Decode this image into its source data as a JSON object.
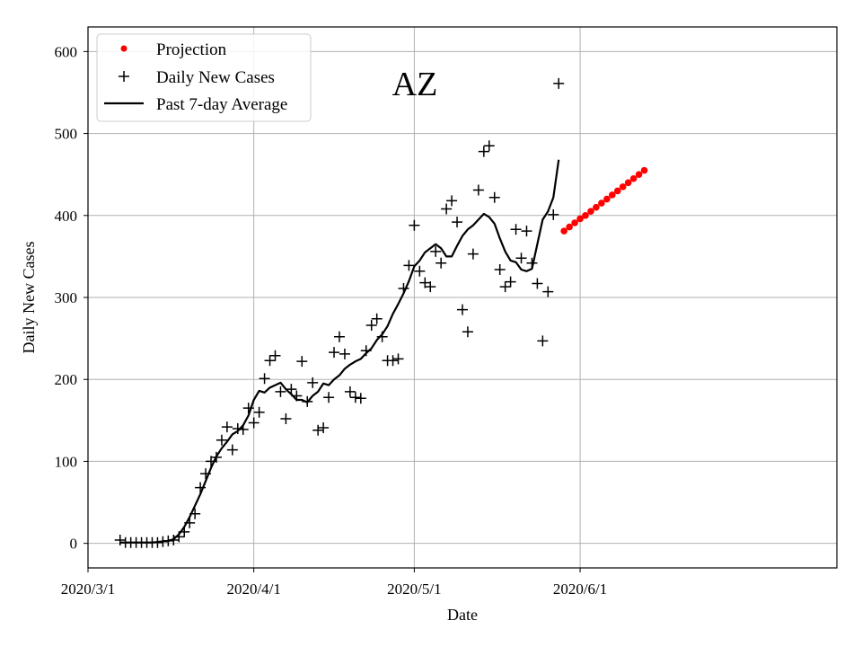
{
  "chart_data": {
    "type": "scatter",
    "title": "AZ",
    "xlabel": "Date",
    "ylabel": "Daily New Cases",
    "grid": true,
    "legend_position": "top-left",
    "xlim": [
      "2020-03-01",
      "2020-07-19"
    ],
    "ylim": [
      -30,
      630
    ],
    "x_ticks": [
      {
        "date": "2020-03-01",
        "label": "2020/3/1"
      },
      {
        "date": "2020-04-01",
        "label": "2020/4/1"
      },
      {
        "date": "2020-05-01",
        "label": "2020/5/1"
      },
      {
        "date": "2020-06-01",
        "label": "2020/6/1"
      }
    ],
    "y_ticks": [
      0,
      100,
      200,
      300,
      400,
      500,
      600
    ],
    "colors": {
      "projection": "#ff0000",
      "daily": "#000000",
      "average": "#000000",
      "grid": "#b0b0b0"
    },
    "series": [
      {
        "name": "Projection",
        "style": "dots",
        "x": [
          "2020-05-29",
          "2020-05-30",
          "2020-05-31",
          "2020-06-01",
          "2020-06-02",
          "2020-06-03",
          "2020-06-04",
          "2020-06-05",
          "2020-06-06",
          "2020-06-07",
          "2020-06-08",
          "2020-06-09",
          "2020-06-10",
          "2020-06-11",
          "2020-06-12",
          "2020-06-13"
        ],
        "y": [
          381,
          386,
          391,
          396,
          400,
          405,
          410,
          415,
          420,
          425,
          430,
          435,
          440,
          445,
          450,
          455
        ]
      },
      {
        "name": "Daily New Cases",
        "style": "plus",
        "x": [
          "2020-03-07",
          "2020-03-08",
          "2020-03-09",
          "2020-03-10",
          "2020-03-11",
          "2020-03-12",
          "2020-03-13",
          "2020-03-14",
          "2020-03-15",
          "2020-03-16",
          "2020-03-17",
          "2020-03-18",
          "2020-03-19",
          "2020-03-20",
          "2020-03-21",
          "2020-03-22",
          "2020-03-23",
          "2020-03-24",
          "2020-03-25",
          "2020-03-26",
          "2020-03-27",
          "2020-03-28",
          "2020-03-29",
          "2020-03-30",
          "2020-03-31",
          "2020-04-01",
          "2020-04-02",
          "2020-04-03",
          "2020-04-04",
          "2020-04-05",
          "2020-04-06",
          "2020-04-07",
          "2020-04-08",
          "2020-04-09",
          "2020-04-10",
          "2020-04-11",
          "2020-04-12",
          "2020-04-13",
          "2020-04-14",
          "2020-04-15",
          "2020-04-16",
          "2020-04-17",
          "2020-04-18",
          "2020-04-19",
          "2020-04-20",
          "2020-04-21",
          "2020-04-22",
          "2020-04-23",
          "2020-04-24",
          "2020-04-25",
          "2020-04-26",
          "2020-04-27",
          "2020-04-28",
          "2020-04-29",
          "2020-04-30",
          "2020-05-01",
          "2020-05-02",
          "2020-05-03",
          "2020-05-04",
          "2020-05-05",
          "2020-05-06",
          "2020-05-07",
          "2020-05-08",
          "2020-05-09",
          "2020-05-10",
          "2020-05-11",
          "2020-05-12",
          "2020-05-13",
          "2020-05-14",
          "2020-05-15",
          "2020-05-16",
          "2020-05-17",
          "2020-05-18",
          "2020-05-19",
          "2020-05-20",
          "2020-05-21",
          "2020-05-22",
          "2020-05-23",
          "2020-05-24",
          "2020-05-25",
          "2020-05-26",
          "2020-05-27",
          "2020-05-28"
        ],
        "y": [
          4,
          1,
          1,
          1,
          1,
          1,
          1,
          1,
          2,
          3,
          4,
          8,
          14,
          25,
          36,
          68,
          85,
          100,
          105,
          126,
          142,
          114,
          140,
          139,
          165,
          147,
          160,
          201,
          223,
          229,
          185,
          152,
          188,
          180,
          222,
          173,
          196,
          138,
          141,
          178,
          233,
          252,
          231,
          185,
          178,
          177,
          235,
          266,
          274,
          252,
          223,
          223,
          225,
          311,
          339,
          388,
          332,
          318,
          313,
          356,
          342,
          408,
          418,
          392,
          285,
          258,
          353,
          431,
          478,
          485,
          422,
          334,
          313,
          319,
          383,
          348,
          381,
          342,
          317,
          247,
          307,
          401,
          561
        ]
      },
      {
        "name": "Past 7-day Average",
        "style": "line",
        "x": [
          "2020-03-07",
          "2020-03-10",
          "2020-03-13",
          "2020-03-16",
          "2020-03-17",
          "2020-03-18",
          "2020-03-19",
          "2020-03-20",
          "2020-03-21",
          "2020-03-22",
          "2020-03-23",
          "2020-03-24",
          "2020-03-25",
          "2020-03-26",
          "2020-03-27",
          "2020-03-28",
          "2020-03-29",
          "2020-03-30",
          "2020-03-31",
          "2020-04-01",
          "2020-04-02",
          "2020-04-03",
          "2020-04-04",
          "2020-04-05",
          "2020-04-06",
          "2020-04-07",
          "2020-04-08",
          "2020-04-09",
          "2020-04-10",
          "2020-04-11",
          "2020-04-12",
          "2020-04-13",
          "2020-04-14",
          "2020-04-15",
          "2020-04-16",
          "2020-04-17",
          "2020-04-18",
          "2020-04-19",
          "2020-04-20",
          "2020-04-21",
          "2020-04-22",
          "2020-04-23",
          "2020-04-24",
          "2020-04-25",
          "2020-04-26",
          "2020-04-27",
          "2020-04-28",
          "2020-04-29",
          "2020-04-30",
          "2020-05-01",
          "2020-05-02",
          "2020-05-03",
          "2020-05-04",
          "2020-05-05",
          "2020-05-06",
          "2020-05-07",
          "2020-05-08",
          "2020-05-09",
          "2020-05-10",
          "2020-05-11",
          "2020-05-12",
          "2020-05-13",
          "2020-05-14",
          "2020-05-15",
          "2020-05-16",
          "2020-05-17",
          "2020-05-18",
          "2020-05-19",
          "2020-05-20",
          "2020-05-21",
          "2020-05-22",
          "2020-05-23",
          "2020-05-24",
          "2020-05-25",
          "2020-05-26",
          "2020-05-27",
          "2020-05-28"
        ],
        "y": [
          1,
          1,
          1,
          3,
          5,
          11,
          20,
          32,
          46,
          60,
          76,
          92,
          106,
          116,
          124,
          133,
          137,
          144,
          156,
          175,
          186,
          184,
          190,
          193,
          196,
          188,
          182,
          175,
          175,
          172,
          180,
          185,
          195,
          193,
          200,
          205,
          213,
          218,
          222,
          225,
          232,
          238,
          248,
          255,
          265,
          280,
          292,
          305,
          320,
          338,
          345,
          355,
          360,
          365,
          360,
          350,
          350,
          363,
          375,
          383,
          388,
          395,
          402,
          398,
          390,
          372,
          356,
          345,
          343,
          334,
          332,
          335,
          365,
          395,
          405,
          422,
          468
        ]
      }
    ]
  }
}
